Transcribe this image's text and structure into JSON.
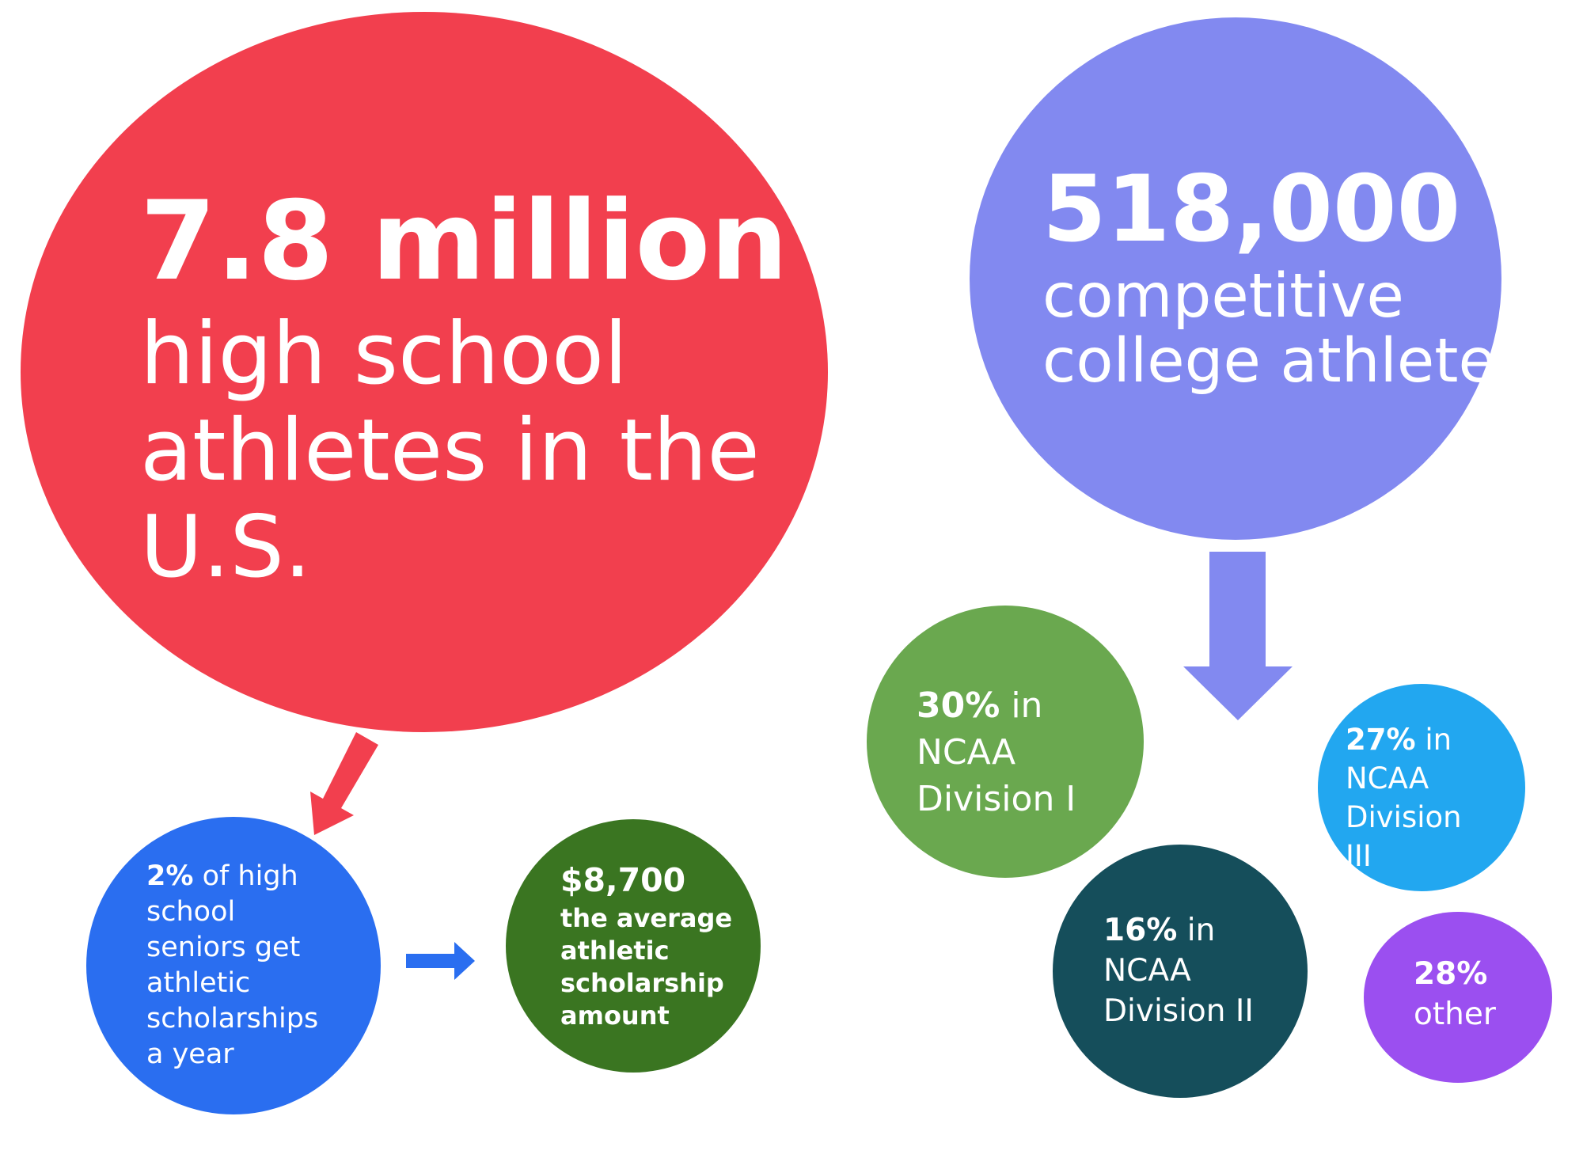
{
  "nodes": [
    {
      "lines": [
        {
          "bold": "7.8 million"
        },
        "high school",
        "athletes in the",
        "U.S."
      ]
    },
    {
      "lines": [
        {
          "bold": "518,000"
        },
        "competitive",
        "college athletes"
      ]
    },
    {
      "lines": [
        {
          "bold": "2%",
          "text": "of high"
        },
        "school",
        "seniors get",
        "athletic",
        "scholarships",
        "a year"
      ]
    },
    {
      "lines": [
        {
          "bold": "$8,700"
        },
        {
          "bold": "the average"
        },
        {
          "bold": "athletic"
        },
        {
          "bold": "scholarship"
        },
        {
          "bold": "amount"
        }
      ]
    },
    {
      "lines": [
        {
          "bold": "30%",
          "text": "in"
        },
        "NCAA",
        "Division I"
      ]
    },
    {
      "lines": [
        {
          "bold": "27%",
          "text": "in"
        },
        "NCAA",
        "Division",
        "III"
      ]
    },
    {
      "lines": [
        {
          "bold": "16%",
          "text": "in"
        },
        "NCAA",
        "Division II"
      ]
    },
    {
      "lines": [
        {
          "bold": "28%"
        },
        "other"
      ]
    }
  ]
}
